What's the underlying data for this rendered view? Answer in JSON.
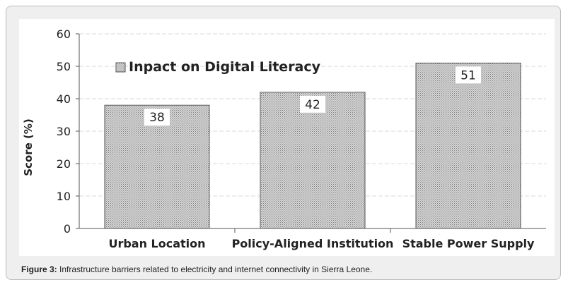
{
  "figure_caption": {
    "label": "Figure 3:",
    "text": " Infrastructure barriers related to electricity and internet connectivity in Sierra Leone."
  },
  "chart_data": {
    "type": "bar",
    "title": "",
    "ylabel": "Score (%)",
    "xlabel": "",
    "categories": [
      "Urban Location",
      "Policy-Aligned Institution",
      "Stable Power Supply"
    ],
    "series": [
      {
        "name": "Inpact on Digital Literacy",
        "values": [
          38,
          42,
          51
        ],
        "pattern": "stipple"
      }
    ],
    "data_labels": [
      "38",
      "42",
      "51"
    ],
    "yticks": [
      "0",
      "10",
      "20",
      "30",
      "40",
      "50",
      "60"
    ],
    "ylim": [
      0,
      60
    ],
    "grid": true,
    "legend_position": "top-left",
    "colors": {
      "bar_fill": "#bdbdbd",
      "bar_border": "#555555",
      "grid": "#d9d9d9",
      "axis": "#555555"
    }
  }
}
